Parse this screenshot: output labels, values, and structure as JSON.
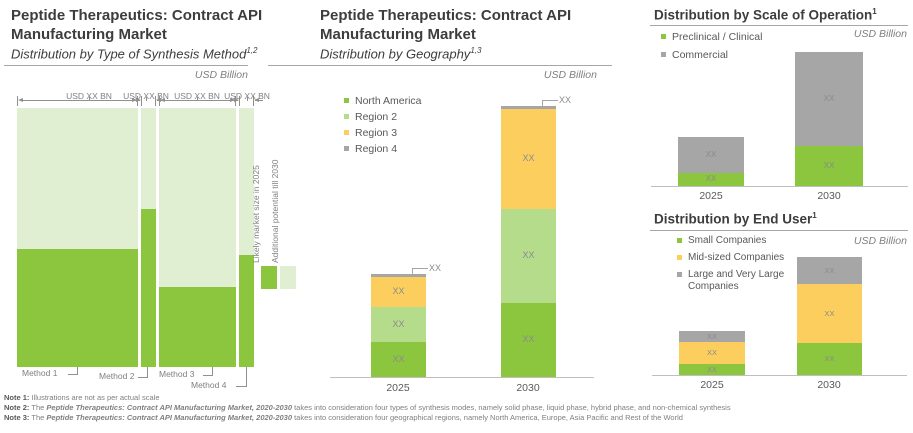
{
  "colors": {
    "green": "#8CC63F",
    "light_green": "#B5DC8A",
    "pale_green": "#E0EFD1",
    "yellow": "#FBCE5E",
    "gray": "#A6A6A6",
    "axis_gray": "#BFBFBF",
    "text_dark": "#3D3D3D",
    "text_gray": "#7F7F7F"
  },
  "left_panel": {
    "title_line1": "Peptide Therapeutics: Contract API",
    "title_line2": "Manufacturing Market",
    "subtitle": "Distribution by Type of Synthesis Method",
    "subtitle_sup": "1,2",
    "unit": "USD Billion",
    "legend": {
      "likely": "Likely market size in 2025",
      "additional": "Additional potential till 2030"
    }
  },
  "mid_panel": {
    "title_line1": "Peptide Therapeutics: Contract API",
    "title_line2": "Manufacturing Market",
    "subtitle": "Distribution by Geography",
    "subtitle_sup": "1,3",
    "unit": "USD Billion"
  },
  "right_top_panel": {
    "title": "Distribution by Scale of Operation",
    "title_sup": "1",
    "unit": "USD Billion"
  },
  "right_bottom_panel": {
    "title": "Distribution by End User",
    "title_sup": "1",
    "unit": "USD Billion"
  },
  "notes": {
    "n1": {
      "label": "Note 1:",
      "text": " Illustrations are not as per actual scale"
    },
    "n2": {
      "label": "Note 2:",
      "pre": " The ",
      "market": "Peptide Therapeutics: Contract API Manufacturing Market, 2020-2030",
      "rest": " takes into consideration four types of synthesis modes, namely solid phase, liquid phase, hybrid phase, and non-chemical synthesis"
    },
    "n3": {
      "label": "Note 3:",
      "pre": " The ",
      "market": "Peptide Therapeutics: Contract API Manufacturing Market, 2020-2030",
      "rest": " takes into consideration four geographical regions, namely North America, Europe,  Asia Pacific and Rest of the World"
    }
  },
  "chart_data": [
    {
      "id": "synthesis-mekko",
      "type": "mekko",
      "title": "Distribution by Type of Synthesis Method",
      "unit": "USD Billion",
      "value_mask": "XX",
      "note": "All values masked as XX on slide; rel_* fields are proportional sizes read from pixels",
      "columns": [
        {
          "label": "Method 1",
          "width_label": "USD XX BN",
          "rel_width": 121,
          "likely_2025": 118,
          "additional_to_2030": 141
        },
        {
          "label": "Method 2",
          "width_label": "USD XX BN",
          "rel_width": 15,
          "likely_2025": 158,
          "additional_to_2030": 101
        },
        {
          "label": "Method 3",
          "width_label": "USD XX BN",
          "rel_width": 77,
          "likely_2025": 80,
          "additional_to_2030": 179
        },
        {
          "label": "Method 4",
          "width_label": "USD XX BN",
          "rel_width": 15,
          "likely_2025": 112,
          "additional_to_2030": 147
        }
      ],
      "legend": [
        "Likely market size in 2025",
        "Additional potential till 2030"
      ]
    },
    {
      "id": "geography",
      "type": "stacked-bar",
      "title": "Distribution by Geography",
      "unit": "USD Billion",
      "categories": [
        "2025",
        "2030"
      ],
      "legend_position": "top-left",
      "series": [
        {
          "name": "North America",
          "color": "green",
          "rel_values": [
            35,
            74
          ],
          "labels": [
            "XX",
            "XX"
          ]
        },
        {
          "name": "Region 2",
          "color": "light_green",
          "rel_values": [
            35,
            94
          ],
          "labels": [
            "XX",
            "XX"
          ]
        },
        {
          "name": "Region 3",
          "color": "yellow",
          "rel_values": [
            30,
            100
          ],
          "labels": [
            "XX",
            "XX"
          ]
        },
        {
          "name": "Region 4",
          "color": "gray",
          "rel_values": [
            3.5,
            3.5
          ],
          "labels": [
            "XX",
            "XX"
          ],
          "label_outside": true
        }
      ]
    },
    {
      "id": "scale-of-operation",
      "type": "stacked-bar",
      "title": "Distribution by Scale of Operation",
      "unit": "USD Billion",
      "categories": [
        "2025",
        "2030"
      ],
      "legend_position": "top-left",
      "series": [
        {
          "name": "Preclinical / Clinical",
          "color": "green",
          "rel_values": [
            13,
            40
          ],
          "labels": [
            "XX",
            "XX"
          ]
        },
        {
          "name": "Commercial",
          "color": "gray",
          "rel_values": [
            36,
            94
          ],
          "labels": [
            "XX",
            "XX"
          ]
        }
      ]
    },
    {
      "id": "end-user",
      "type": "stacked-bar",
      "title": "Distribution by End User",
      "unit": "USD Billion",
      "categories": [
        "2025",
        "2030"
      ],
      "legend_position": "top-left",
      "series": [
        {
          "name": "Small Companies",
          "color": "green",
          "rel_values": [
            11,
            32
          ],
          "labels": [
            "XX",
            "XX"
          ]
        },
        {
          "name": "Mid-sized Companies",
          "color": "yellow",
          "rel_values": [
            22,
            59
          ],
          "labels": [
            "XX",
            "XX"
          ]
        },
        {
          "name": "Large and Very Large Companies",
          "color": "gray",
          "rel_values": [
            11,
            27
          ],
          "labels": [
            "XX",
            "XX"
          ]
        }
      ]
    }
  ]
}
